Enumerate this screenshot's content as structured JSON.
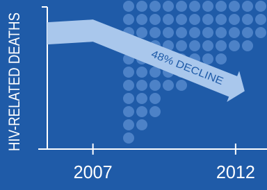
{
  "chart_data": {
    "type": "arrow",
    "y_label": "HIV-RELATED DEATHS",
    "annotation": "48% DECLINE",
    "x": [
      2007,
      2012
    ],
    "values": [
      100,
      52
    ],
    "color": "#a9c7ec",
    "xlim": [
      2005.4,
      2013.1
    ],
    "xticks": [
      2007,
      2012
    ],
    "ylim": [
      0,
      120
    ]
  }
}
